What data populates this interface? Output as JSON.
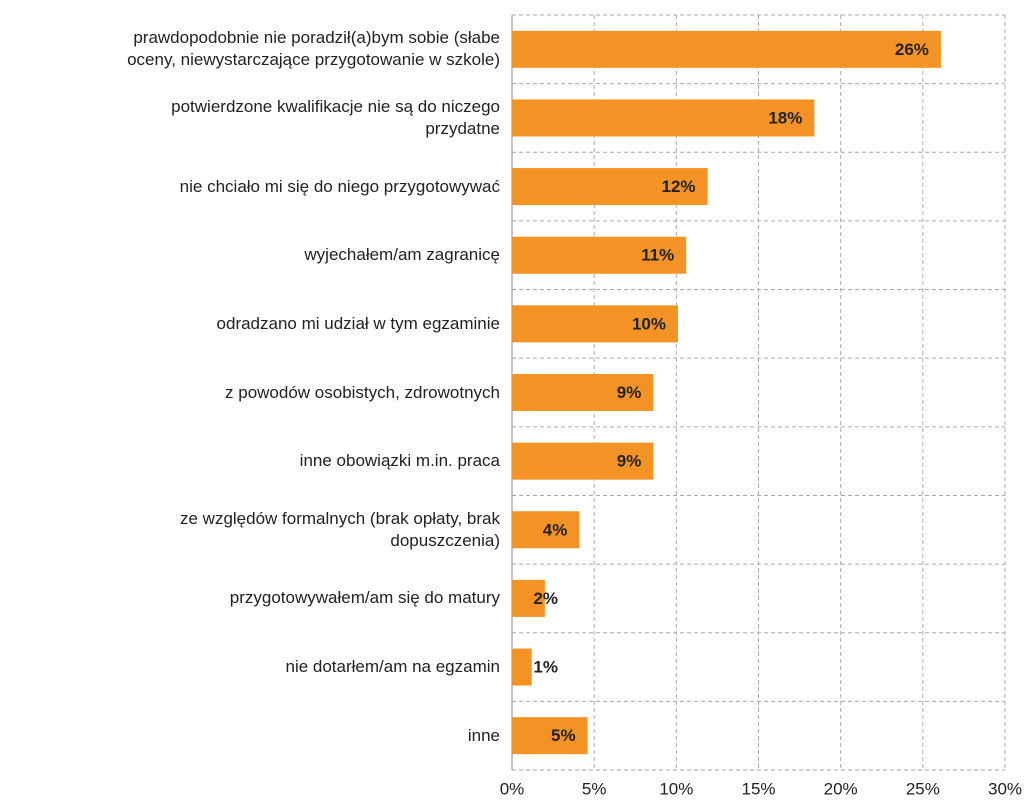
{
  "chart_data": {
    "type": "barh",
    "categories": [
      "prawdopodobnie nie poradził(a)bym sobie (słabe\noceny, niewystarczające przygotowanie w szkole)",
      "potwierdzone kwalifikacje nie są do niczego\nprzydatne",
      "nie chciało mi się do niego przygotowywać",
      "wyjechałem/am zagranicę",
      "odradzano mi udział w tym egzaminie",
      "z powodów osobistych, zdrowotnych",
      "inne obowiązki m.in. praca",
      "ze względów formalnych (brak opłaty, brak\ndopuszczenia)",
      "przygotowywałem/am się do matury",
      "nie dotarłem/am na egzamin",
      "inne"
    ],
    "values": [
      26.1,
      18.4,
      11.9,
      10.6,
      10.1,
      8.6,
      8.6,
      4.1,
      2.0,
      1.2,
      4.6
    ],
    "value_labels": [
      "26%",
      "18%",
      "12%",
      "11%",
      "10%",
      "9%",
      "9%",
      "4%",
      "2%",
      "1%",
      "5%"
    ],
    "color": "#f39325",
    "xlim": [
      0,
      30
    ],
    "xticks": [
      {
        "value": 0,
        "label": "0%"
      },
      {
        "value": 5,
        "label": "5%"
      },
      {
        "value": 10,
        "label": "10%"
      },
      {
        "value": 15,
        "label": "15%"
      },
      {
        "value": 20,
        "label": "20%"
      },
      {
        "value": 25,
        "label": "25%"
      },
      {
        "value": 30,
        "label": "30%"
      }
    ],
    "grid": true
  }
}
